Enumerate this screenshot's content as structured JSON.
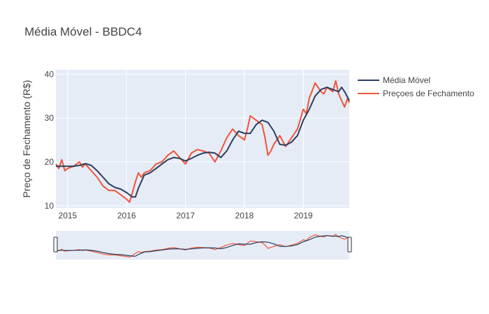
{
  "chart_data": {
    "type": "line",
    "title": "Média Móvel - BBDC4",
    "xlabel": "",
    "ylabel": "Preço de Fechamento (R$)",
    "x_ticks": [
      "2015",
      "2016",
      "2017",
      "2018",
      "2019"
    ],
    "x_tick_values": [
      2015,
      2016,
      2017,
      2018,
      2019
    ],
    "xlim": [
      2014.8,
      2019.78
    ],
    "ylim": [
      9.5,
      41
    ],
    "y_ticks": [
      10,
      20,
      30,
      40
    ],
    "grid": true,
    "legend_position": "top-right",
    "rangeslider": true,
    "series": [
      {
        "name": "Média Móvel",
        "color": "#2a3f5f",
        "x": [
          2014.8,
          2015.0,
          2015.1,
          2015.2,
          2015.3,
          2015.4,
          2015.5,
          2015.6,
          2015.7,
          2015.8,
          2015.9,
          2016.0,
          2016.1,
          2016.15,
          2016.2,
          2016.3,
          2016.4,
          2016.5,
          2016.6,
          2016.7,
          2016.8,
          2016.9,
          2017.0,
          2017.1,
          2017.2,
          2017.3,
          2017.4,
          2017.5,
          2017.6,
          2017.7,
          2017.8,
          2017.9,
          2018.0,
          2018.1,
          2018.2,
          2018.3,
          2018.4,
          2018.5,
          2018.6,
          2018.7,
          2018.8,
          2018.9,
          2019.0,
          2019.1,
          2019.2,
          2019.3,
          2019.4,
          2019.5,
          2019.6,
          2019.65,
          2019.7,
          2019.78
        ],
        "y": [
          19.0,
          19.0,
          19.0,
          19.2,
          19.6,
          19.2,
          18.0,
          16.5,
          15.0,
          14.2,
          13.8,
          13.0,
          12.0,
          12.0,
          14.0,
          17.0,
          17.5,
          18.5,
          19.5,
          20.5,
          21.0,
          20.8,
          20.2,
          20.8,
          21.5,
          22.0,
          22.2,
          22.0,
          21.0,
          22.5,
          25.0,
          27.0,
          26.5,
          26.5,
          28.5,
          29.5,
          29.0,
          27.0,
          24.0,
          23.8,
          24.5,
          26.0,
          29.5,
          32.0,
          35.0,
          36.5,
          37.0,
          36.5,
          36.0,
          37.0,
          36.0,
          34.0
        ]
      },
      {
        "name": "Preçoes de Fechamento",
        "color": "#ef553b",
        "x": [
          2014.8,
          2014.85,
          2014.9,
          2014.95,
          2015.0,
          2015.1,
          2015.2,
          2015.25,
          2015.3,
          2015.4,
          2015.5,
          2015.6,
          2015.7,
          2015.8,
          2015.9,
          2016.0,
          2016.05,
          2016.1,
          2016.15,
          2016.2,
          2016.25,
          2016.3,
          2016.4,
          2016.5,
          2016.6,
          2016.7,
          2016.8,
          2016.9,
          2017.0,
          2017.1,
          2017.2,
          2017.3,
          2017.4,
          2017.5,
          2017.6,
          2017.7,
          2017.8,
          2017.9,
          2018.0,
          2018.05,
          2018.1,
          2018.2,
          2018.3,
          2018.35,
          2018.4,
          2018.45,
          2018.5,
          2018.6,
          2018.7,
          2018.8,
          2018.9,
          2019.0,
          2019.05,
          2019.1,
          2019.2,
          2019.3,
          2019.35,
          2019.4,
          2019.5,
          2019.55,
          2019.6,
          2019.65,
          2019.7,
          2019.75,
          2019.78
        ],
        "y": [
          19.5,
          18.5,
          20.5,
          18.0,
          18.5,
          19.0,
          20.0,
          18.8,
          19.5,
          18.0,
          16.5,
          14.5,
          13.5,
          13.5,
          12.5,
          11.5,
          10.8,
          13.0,
          15.5,
          17.5,
          16.5,
          17.5,
          18.0,
          19.5,
          20.0,
          21.5,
          22.5,
          21.0,
          19.5,
          22.0,
          22.8,
          22.5,
          22.0,
          20.0,
          22.5,
          25.5,
          27.5,
          26.0,
          25.0,
          27.5,
          30.5,
          29.5,
          28.5,
          25.5,
          21.5,
          22.5,
          24.0,
          26.0,
          23.5,
          25.5,
          27.5,
          32.0,
          31.0,
          34.5,
          38.0,
          36.0,
          35.5,
          37.0,
          36.0,
          38.5,
          35.5,
          34.0,
          32.5,
          34.5,
          33.5
        ]
      }
    ]
  }
}
